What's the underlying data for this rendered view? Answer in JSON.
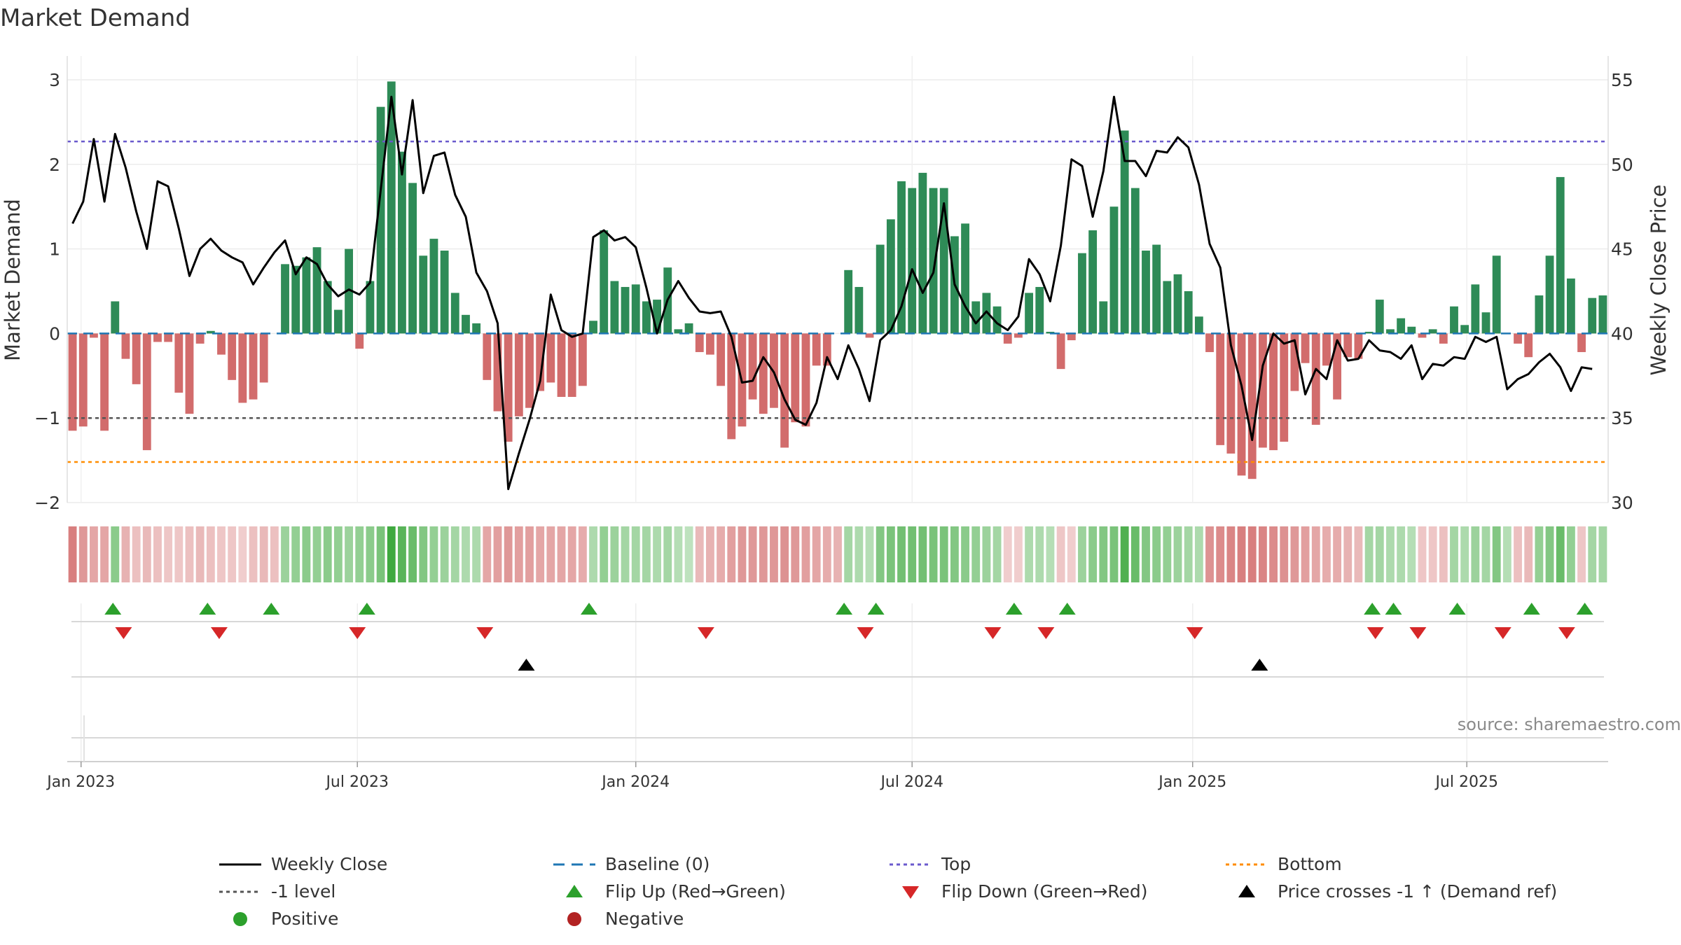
{
  "title": "Market Demand",
  "source": "source: sharemaestro.com",
  "colors": {
    "positive": "#2e8b57",
    "negative": "#cd5c5c",
    "price": "#000000",
    "top": "#6a5acd",
    "bottom": "#ff8c00",
    "minus_one": "#555555",
    "baseline": "#1f77b4",
    "flip_up": "#2ca02c",
    "flip_down": "#d62728",
    "cross": "#000000"
  },
  "legend": {
    "weekly_close": "Weekly Close",
    "baseline": "Baseline (0)",
    "top": "Top",
    "bottom": "Bottom",
    "minus_one": "-1 level",
    "flip_up": "Flip Up (Red→Green)",
    "flip_down": "Flip Down (Green→Red)",
    "cross": "Price crosses -1 ↑ (Demand ref)",
    "positive": "Positive",
    "negative": "Negative"
  },
  "chart_data": {
    "type": "bar+line",
    "title": "Market Demand",
    "ylabel_left": "Market Demand",
    "ylabel_right": "Weekly Close Price",
    "ylim_left": [
      -2,
      3
    ],
    "ylim_right": [
      30,
      55
    ],
    "left_ticks": [
      3,
      2,
      1,
      0,
      -1,
      -2
    ],
    "left_tick_labels": [
      "3",
      "2",
      "1",
      "0",
      "−1",
      "−2"
    ],
    "right_ticks": [
      55,
      50,
      45,
      40,
      35,
      30
    ],
    "right_tick_labels": [
      "55",
      "50",
      "45",
      "40",
      "35",
      "30"
    ],
    "x_tick_week_index": [
      0.8,
      26.8,
      53,
      79,
      105.4,
      131.2
    ],
    "x_tick_labels": [
      "Jan 2023",
      "Jul 2023",
      "Jan 2024",
      "Jul 2024",
      "Jan 2025",
      "Jul 2025"
    ],
    "top_level": 2.27,
    "bottom_level": -1.52,
    "minus_one_level": -1,
    "demand": [
      -1.15,
      -1.1,
      -0.05,
      -1.15,
      0.38,
      -0.3,
      -0.6,
      -1.38,
      -0.1,
      -0.1,
      -0.7,
      -0.95,
      -0.12,
      0.03,
      -0.25,
      -0.55,
      -0.82,
      -0.78,
      -0.58,
      0,
      0.82,
      0.8,
      0.9,
      1.02,
      0.62,
      0.28,
      1.0,
      -0.18,
      0.62,
      2.68,
      2.98,
      2.15,
      1.78,
      0.92,
      1.12,
      0.98,
      0.48,
      0.22,
      0.12,
      -0.55,
      -0.92,
      -1.28,
      -0.98,
      -0.88,
      -0.68,
      -0.58,
      -0.75,
      -0.75,
      -0.62,
      0.15,
      1.22,
      0.62,
      0.55,
      0.58,
      0.38,
      0.4,
      0.78,
      0.05,
      0.12,
      -0.22,
      -0.25,
      -0.62,
      -1.25,
      -1.1,
      -0.78,
      -0.95,
      -0.88,
      -1.35,
      -1.05,
      -1.1,
      -0.38,
      -0.38,
      0,
      0.75,
      0.55,
      -0.05,
      1.05,
      1.35,
      1.8,
      1.72,
      1.9,
      1.72,
      1.72,
      1.15,
      1.3,
      0.38,
      0.48,
      0.32,
      -0.12,
      -0.05,
      0.48,
      0.55,
      0.02,
      -0.42,
      -0.08,
      0.95,
      1.22,
      0.38,
      1.5,
      2.4,
      1.72,
      0.98,
      1.05,
      0.62,
      0.7,
      0.5,
      0.2,
      -0.22,
      -1.32,
      -1.42,
      -1.68,
      -1.72,
      -1.35,
      -1.38,
      -1.28,
      -0.68,
      -0.35,
      -1.08,
      -0.38,
      -0.78,
      -0.28,
      -0.3,
      0.02,
      0.4,
      0.05,
      0.18,
      0.08,
      -0.05,
      0.05,
      -0.12,
      0.32,
      0.1,
      0.58,
      0.25,
      0.92,
      0,
      -0.12,
      -0.28,
      0.45,
      0.92,
      1.85,
      0.65,
      -0.22,
      0.42,
      0.45
    ],
    "weekly_close": [
      46.5,
      47.8,
      51.5,
      47.8,
      51.8,
      49.8,
      47.2,
      45.0,
      49.0,
      48.7,
      46.2,
      43.4,
      45.0,
      45.6,
      44.9,
      44.5,
      44.2,
      42.9,
      43.9,
      44.8,
      45.5,
      43.5,
      44.5,
      44.1,
      42.9,
      42.2,
      42.6,
      42.3,
      43.0,
      48.5,
      54.0,
      49.4,
      53.8,
      48.3,
      50.5,
      50.7,
      48.2,
      46.9,
      43.6,
      42.5,
      40.6,
      30.8,
      32.9,
      34.9,
      37.2,
      42.3,
      40.2,
      39.8,
      40.0,
      45.7,
      46.1,
      45.5,
      45.7,
      45.1,
      42.7,
      40.0,
      42.0,
      43.1,
      42.1,
      41.3,
      41.2,
      41.3,
      39.8,
      37.1,
      37.2,
      38.6,
      37.7,
      36.1,
      34.9,
      34.6,
      35.9,
      38.6,
      37.3,
      39.3,
      37.9,
      36.0,
      39.6,
      40.2,
      41.6,
      43.8,
      42.4,
      43.6,
      47.7,
      42.9,
      41.6,
      40.6,
      41.3,
      40.6,
      40.2,
      41.0,
      44.4,
      43.5,
      41.9,
      45.2,
      50.3,
      49.9,
      46.9,
      49.6,
      54.0,
      50.2,
      50.2,
      49.3,
      50.8,
      50.7,
      51.6,
      51.0,
      48.8,
      45.3,
      43.9,
      39.3,
      36.9,
      33.7,
      38.1,
      40.0,
      39.4,
      39.6,
      36.4,
      37.9,
      37.3,
      39.6,
      38.4,
      38.5,
      39.6,
      39.0,
      38.9,
      38.5,
      39.3,
      37.3,
      38.2,
      38.1,
      38.6,
      38.5,
      39.8,
      39.5,
      39.8,
      36.7,
      37.3,
      37.6,
      38.3,
      38.8,
      38.0,
      36.6,
      38.0,
      37.9
    ],
    "regime_strip": [
      -0.8,
      -0.6,
      -0.5,
      -0.5,
      0.5,
      -0.4,
      -0.3,
      -0.35,
      -0.3,
      -0.25,
      -0.25,
      -0.3,
      -0.35,
      -0.3,
      -0.25,
      -0.25,
      -0.2,
      -0.3,
      -0.35,
      -0.3,
      0.4,
      0.45,
      0.5,
      0.45,
      0.5,
      0.45,
      0.4,
      0.45,
      0.5,
      0.6,
      0.95,
      0.8,
      0.7,
      0.55,
      0.45,
      0.4,
      0.35,
      0.3,
      0.3,
      -0.5,
      -0.55,
      -0.6,
      -0.55,
      -0.55,
      -0.5,
      -0.5,
      -0.5,
      -0.5,
      -0.45,
      0.3,
      0.45,
      0.4,
      0.35,
      0.35,
      0.35,
      0.3,
      0.35,
      0.25,
      0.2,
      -0.35,
      -0.4,
      -0.45,
      -0.55,
      -0.6,
      -0.6,
      -0.6,
      -0.6,
      -0.65,
      -0.6,
      -0.55,
      -0.5,
      -0.45,
      -0.4,
      0.35,
      0.3,
      0.25,
      0.55,
      0.6,
      0.65,
      0.65,
      0.65,
      0.6,
      0.6,
      0.55,
      0.5,
      0.45,
      0.4,
      0.35,
      -0.2,
      -0.2,
      0.3,
      0.3,
      0.25,
      -0.25,
      -0.2,
      0.4,
      0.5,
      0.55,
      0.6,
      0.85,
      0.7,
      0.55,
      0.5,
      0.45,
      0.4,
      0.35,
      0.3,
      -0.65,
      -0.7,
      -0.75,
      -0.8,
      -0.8,
      -0.75,
      -0.7,
      -0.65,
      -0.6,
      -0.55,
      -0.5,
      -0.45,
      -0.45,
      -0.4,
      -0.35,
      0.35,
      0.35,
      0.3,
      0.3,
      0.25,
      -0.25,
      -0.25,
      -0.3,
      0.35,
      0.3,
      0.4,
      0.35,
      0.55,
      0.25,
      -0.3,
      -0.35,
      0.45,
      0.55,
      0.7,
      0.45,
      -0.25,
      0.35,
      0.35
    ],
    "flip_up_weeks": [
      3.8,
      12.7,
      18.7,
      27.7,
      48.6,
      72.6,
      75.6,
      88.6,
      93.6,
      122.3,
      124.3,
      130.3,
      137.3,
      142.3
    ],
    "flip_down_weeks": [
      4.8,
      13.8,
      26.8,
      38.8,
      59.6,
      74.6,
      86.6,
      91.6,
      105.6,
      122.6,
      126.6,
      134.6,
      140.6
    ],
    "price_cross_weeks": [
      42.7,
      111.7
    ]
  }
}
